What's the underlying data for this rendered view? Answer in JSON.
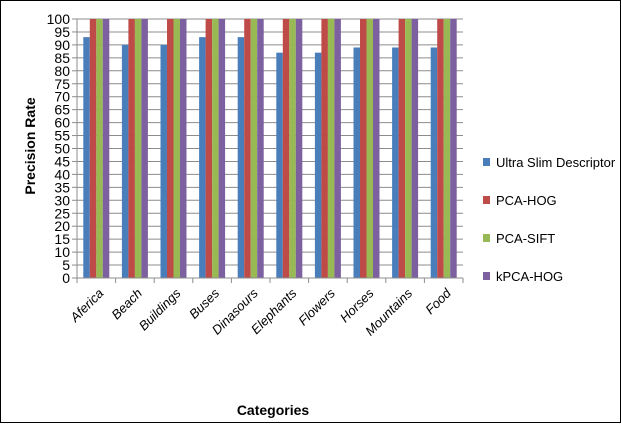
{
  "chart_data": {
    "type": "bar",
    "title": "",
    "xlabel": "Categories",
    "ylabel": "Precision Rate",
    "ylim": [
      0,
      100
    ],
    "ytick_step": 5,
    "grid": true,
    "legend_position": "right",
    "categories": [
      "Aferica",
      "Beach",
      "Buildings",
      "Buses",
      "Dinasours",
      "Elephants",
      "Flowers",
      "Horses",
      "Mountains",
      "Food"
    ],
    "series": [
      {
        "name": "Ultra Slim Descriptor",
        "color": "#4a7ebb",
        "values": [
          93,
          90,
          90,
          93,
          93,
          87,
          87,
          89,
          89,
          89
        ]
      },
      {
        "name": "PCA-HOG",
        "color": "#be4b48",
        "values": [
          100,
          100,
          100,
          100,
          100,
          100,
          100,
          100,
          100,
          100
        ]
      },
      {
        "name": "PCA-SIFT",
        "color": "#98b954",
        "values": [
          100,
          100,
          100,
          100,
          100,
          100,
          100,
          100,
          100,
          100
        ]
      },
      {
        "name": "kPCA-HOG",
        "color": "#7d60a0",
        "values": [
          100,
          100,
          100,
          100,
          100,
          100,
          100,
          100,
          100,
          100
        ]
      }
    ]
  }
}
